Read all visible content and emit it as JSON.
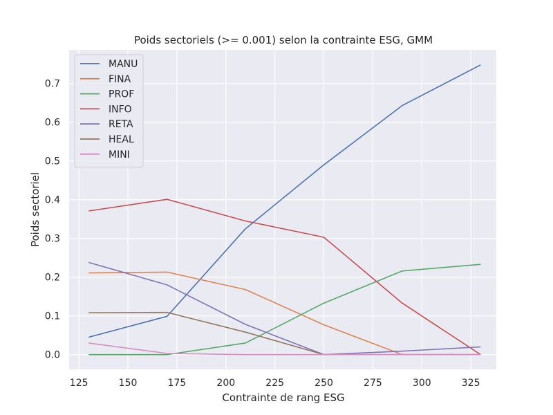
{
  "chart_data": {
    "type": "line",
    "title": "Poids sectoriels (>= 0.001) selon la contrainte ESG, GMM",
    "xlabel": "Contrainte de rang ESG",
    "ylabel": "Poids sectoriel",
    "xlim": [
      120,
      338
    ],
    "ylim": [
      -0.038,
      0.787
    ],
    "xticks": [
      125,
      150,
      175,
      200,
      225,
      250,
      275,
      300,
      325
    ],
    "yticks": [
      0.0,
      0.1,
      0.2,
      0.3,
      0.4,
      0.5,
      0.6,
      0.7
    ],
    "ytick_labels": [
      "0.0",
      "0.1",
      "0.2",
      "0.3",
      "0.4",
      "0.5",
      "0.6",
      "0.7"
    ],
    "grid": true,
    "legend_position": "top-left",
    "x": [
      130,
      170,
      210,
      250,
      290,
      330
    ],
    "series": [
      {
        "name": "MANU",
        "color": "#4c72b0",
        "values": [
          0.045,
          0.099,
          0.325,
          0.49,
          0.643,
          0.748
        ]
      },
      {
        "name": "FINA",
        "color": "#dd8452",
        "values": [
          0.211,
          0.213,
          0.168,
          0.077,
          0.0,
          0.0
        ]
      },
      {
        "name": "PROF",
        "color": "#55a868",
        "values": [
          0.0,
          0.0,
          0.03,
          0.133,
          0.216,
          0.233
        ]
      },
      {
        "name": "INFO",
        "color": "#c44e52",
        "values": [
          0.371,
          0.401,
          0.345,
          0.303,
          0.133,
          0.0
        ]
      },
      {
        "name": "RETA",
        "color": "#8172b3",
        "values": [
          0.238,
          0.18,
          0.078,
          0.0,
          0.009,
          0.02
        ]
      },
      {
        "name": "HEAL",
        "color": "#937860",
        "values": [
          0.108,
          0.109,
          0.058,
          0.0,
          0.0,
          0.0
        ]
      },
      {
        "name": "MINI",
        "color": "#da8bc3",
        "values": [
          0.03,
          0.003,
          0.0,
          0.0,
          0.0,
          0.0
        ]
      }
    ]
  }
}
